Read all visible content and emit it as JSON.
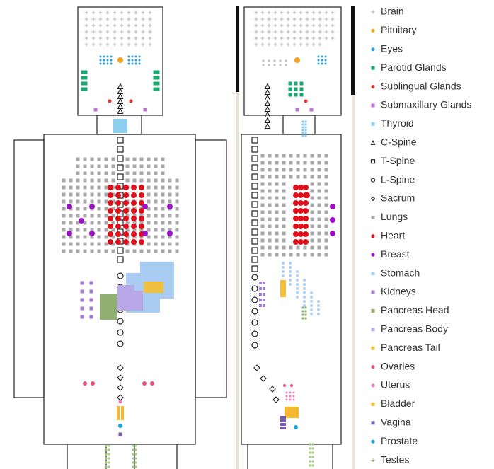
{
  "legend": {
    "items": [
      {
        "label": "Brain",
        "color": "#b5b5b5",
        "marker": "plus"
      },
      {
        "label": "Pituitary",
        "color": "#f5a020",
        "marker": "dot"
      },
      {
        "label": "Eyes",
        "color": "#2aa0dc",
        "marker": "dot"
      },
      {
        "label": "Parotid Glands",
        "color": "#17a86c",
        "marker": "square"
      },
      {
        "label": "Sublingual Glands",
        "color": "#e8302c",
        "marker": "dot"
      },
      {
        "label": "Submaxillary Glands",
        "color": "#c070dc",
        "marker": "square"
      },
      {
        "label": "Thyroid",
        "color": "#8fd0f0",
        "marker": "square"
      },
      {
        "label": "C-Spine",
        "color": "#222222",
        "marker": "triangle-open"
      },
      {
        "label": "T-Spine",
        "color": "#222222",
        "marker": "square-open"
      },
      {
        "label": "L-Spine",
        "color": "#222222",
        "marker": "circle-open"
      },
      {
        "label": "Sacrum",
        "color": "#222222",
        "marker": "diamond-open"
      },
      {
        "label": "Lungs",
        "color": "#a8a8a8",
        "marker": "square"
      },
      {
        "label": "Heart",
        "color": "#e0101a",
        "marker": "dot"
      },
      {
        "label": "Breast",
        "color": "#a010c8",
        "marker": "dot"
      },
      {
        "label": "Stomach",
        "color": "#a8ccf2",
        "marker": "square"
      },
      {
        "label": "Kidneys",
        "color": "#a47cd6",
        "marker": "square"
      },
      {
        "label": "Pancreas Head",
        "color": "#8fb070",
        "marker": "square"
      },
      {
        "label": "Pancreas Body",
        "color": "#b8a8e8",
        "marker": "square"
      },
      {
        "label": "Pancreas Tail",
        "color": "#f0c040",
        "marker": "square"
      },
      {
        "label": "Ovaries",
        "color": "#e8507a",
        "marker": "dot"
      },
      {
        "label": "Uterus",
        "color": "#f07cc4",
        "marker": "dot"
      },
      {
        "label": "Bladder",
        "color": "#f5b82e",
        "marker": "square"
      },
      {
        "label": "Vagina",
        "color": "#7a5cb0",
        "marker": "square"
      },
      {
        "label": "Prostate",
        "color": "#18a8e0",
        "marker": "dot"
      },
      {
        "label": "Testes",
        "color": "#8fc060",
        "marker": "plus"
      }
    ]
  }
}
